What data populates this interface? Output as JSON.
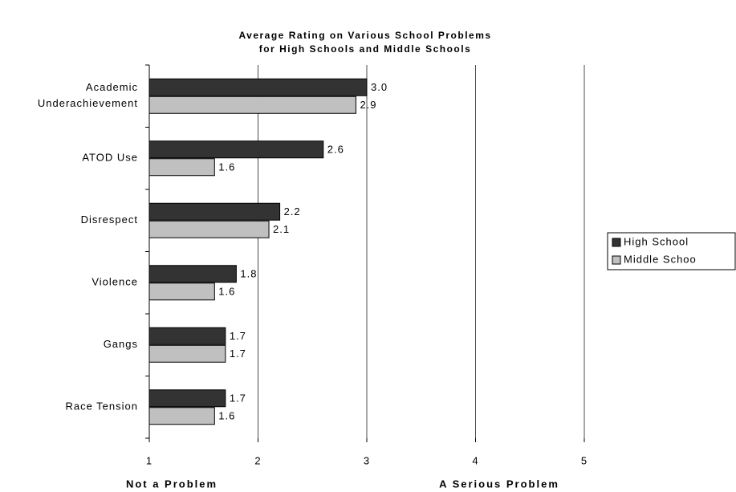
{
  "chart_data": {
    "type": "bar",
    "orientation": "horizontal",
    "title": [
      "Average Rating on Various School Problems",
      "for High Schools and Middle Schools"
    ],
    "categories": [
      "Academic Underachievement",
      "ATOD Use",
      "Disrespect",
      "Violence",
      "Gangs",
      "Race Tension"
    ],
    "series": [
      {
        "name": "High School",
        "color": "#333333",
        "values": [
          3,
          2.6,
          2.2,
          1.8,
          1.7,
          1.7
        ],
        "value_labels": [
          "3.0",
          "2.6",
          "2.2",
          "1.8",
          "1.7",
          "1.7"
        ]
      },
      {
        "name": "Middle Schoo",
        "color": "#c0c0c0",
        "values": [
          2.9,
          1.6,
          2.1,
          1.6,
          1.7,
          1.6
        ],
        "value_labels": [
          "2.9",
          "1.6",
          "2.1",
          "1.6",
          "1.7",
          "1.6"
        ]
      }
    ],
    "xlim": [
      1,
      5
    ],
    "xticks": [
      1,
      2,
      3,
      4,
      5
    ],
    "grid": true,
    "x_axis_labels": [
      "Not a Problem",
      "A Serious Problem"
    ],
    "legend": "right"
  }
}
